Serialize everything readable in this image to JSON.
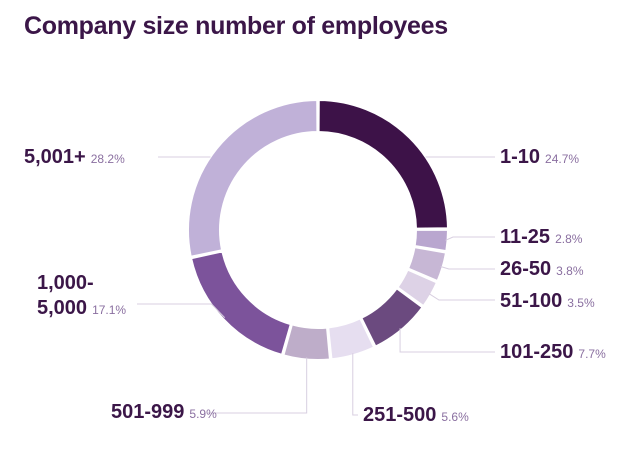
{
  "title": "Company size number of employees",
  "chart_data": {
    "type": "pie",
    "title": "Company size number of employees",
    "donut": true,
    "slices": [
      {
        "label": "1-10",
        "value": 24.7,
        "pct_label": "24.7%",
        "color": "#3d1248"
      },
      {
        "label": "11-25",
        "value": 2.8,
        "pct_label": "2.8%",
        "color": "#b9a6cf"
      },
      {
        "label": "26-50",
        "value": 3.8,
        "pct_label": "3.8%",
        "color": "#c7b7d5"
      },
      {
        "label": "51-100",
        "value": 3.5,
        "pct_label": "3.5%",
        "color": "#ddd2e6"
      },
      {
        "label": "101-250",
        "value": 7.7,
        "pct_label": "7.7%",
        "color": "#6b4a7f"
      },
      {
        "label": "251-500",
        "value": 5.6,
        "pct_label": "5.6%",
        "color": "#e6def0"
      },
      {
        "label": "501-999",
        "value": 5.9,
        "pct_label": "5.9%",
        "color": "#beadc9"
      },
      {
        "label_line1": "1,000-",
        "label_line2": "5,000",
        "value": 17.1,
        "pct_label": "17.1%",
        "color": "#7c539b"
      },
      {
        "label": "5,001+",
        "value": 28.2,
        "pct_label": "28.2%",
        "color": "#c0b1d8"
      }
    ]
  }
}
